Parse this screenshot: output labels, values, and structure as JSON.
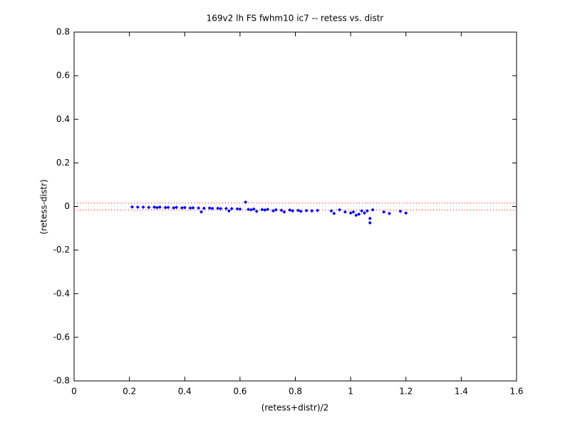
{
  "chart_data": {
    "type": "scatter",
    "title": "169v2 lh FS fwhm10 ic7 -- retess vs. distr",
    "x_label": "(retess+distr)/2",
    "y_label": "(retess-distr)",
    "xlim": [
      0,
      1.6
    ],
    "xticks": [
      0,
      0.2,
      0.4,
      0.6,
      0.8,
      1,
      1.2,
      1.4,
      1.6
    ],
    "ylim": [
      -0.8,
      0.8
    ],
    "yticks": [
      -0.8,
      -0.6,
      -0.4,
      -0.2,
      0,
      0.2,
      0.4,
      0.6,
      0.8
    ],
    "grid": false,
    "limit_lines": {
      "color": "#ff0000",
      "values": [
        0.016,
        -0.016
      ]
    },
    "series": [
      {
        "color": "#0000ff",
        "x": [
          0.21,
          0.23,
          0.25,
          0.27,
          0.29,
          0.3,
          0.31,
          0.33,
          0.34,
          0.36,
          0.37,
          0.39,
          0.4,
          0.42,
          0.43,
          0.45,
          0.46,
          0.47,
          0.49,
          0.5,
          0.52,
          0.53,
          0.55,
          0.56,
          0.57,
          0.59,
          0.6,
          0.62,
          0.63,
          0.64,
          0.65,
          0.66,
          0.68,
          0.69,
          0.7,
          0.72,
          0.73,
          0.75,
          0.76,
          0.78,
          0.79,
          0.81,
          0.82,
          0.84,
          0.86,
          0.88,
          0.93,
          0.94,
          0.96,
          0.98,
          1.0,
          1.01,
          1.02,
          1.03,
          1.04,
          1.05,
          1.06,
          1.07,
          1.07,
          1.08,
          1.12,
          1.14,
          1.18,
          1.2
        ],
        "values": [
          -0.002,
          -0.003,
          -0.003,
          -0.004,
          -0.003,
          -0.005,
          -0.003,
          -0.005,
          -0.004,
          -0.006,
          -0.004,
          -0.006,
          -0.005,
          -0.007,
          -0.006,
          -0.007,
          -0.025,
          -0.008,
          -0.007,
          -0.009,
          -0.008,
          -0.01,
          -0.009,
          -0.02,
          -0.01,
          -0.011,
          -0.012,
          0.02,
          -0.013,
          -0.015,
          -0.012,
          -0.022,
          -0.014,
          -0.016,
          -0.013,
          -0.02,
          -0.015,
          -0.017,
          -0.025,
          -0.016,
          -0.02,
          -0.018,
          -0.022,
          -0.019,
          -0.02,
          -0.018,
          -0.02,
          -0.032,
          -0.015,
          -0.025,
          -0.03,
          -0.025,
          -0.04,
          -0.035,
          -0.02,
          -0.03,
          -0.02,
          -0.055,
          -0.075,
          -0.015,
          -0.025,
          -0.032,
          -0.022,
          -0.03
        ]
      }
    ]
  }
}
